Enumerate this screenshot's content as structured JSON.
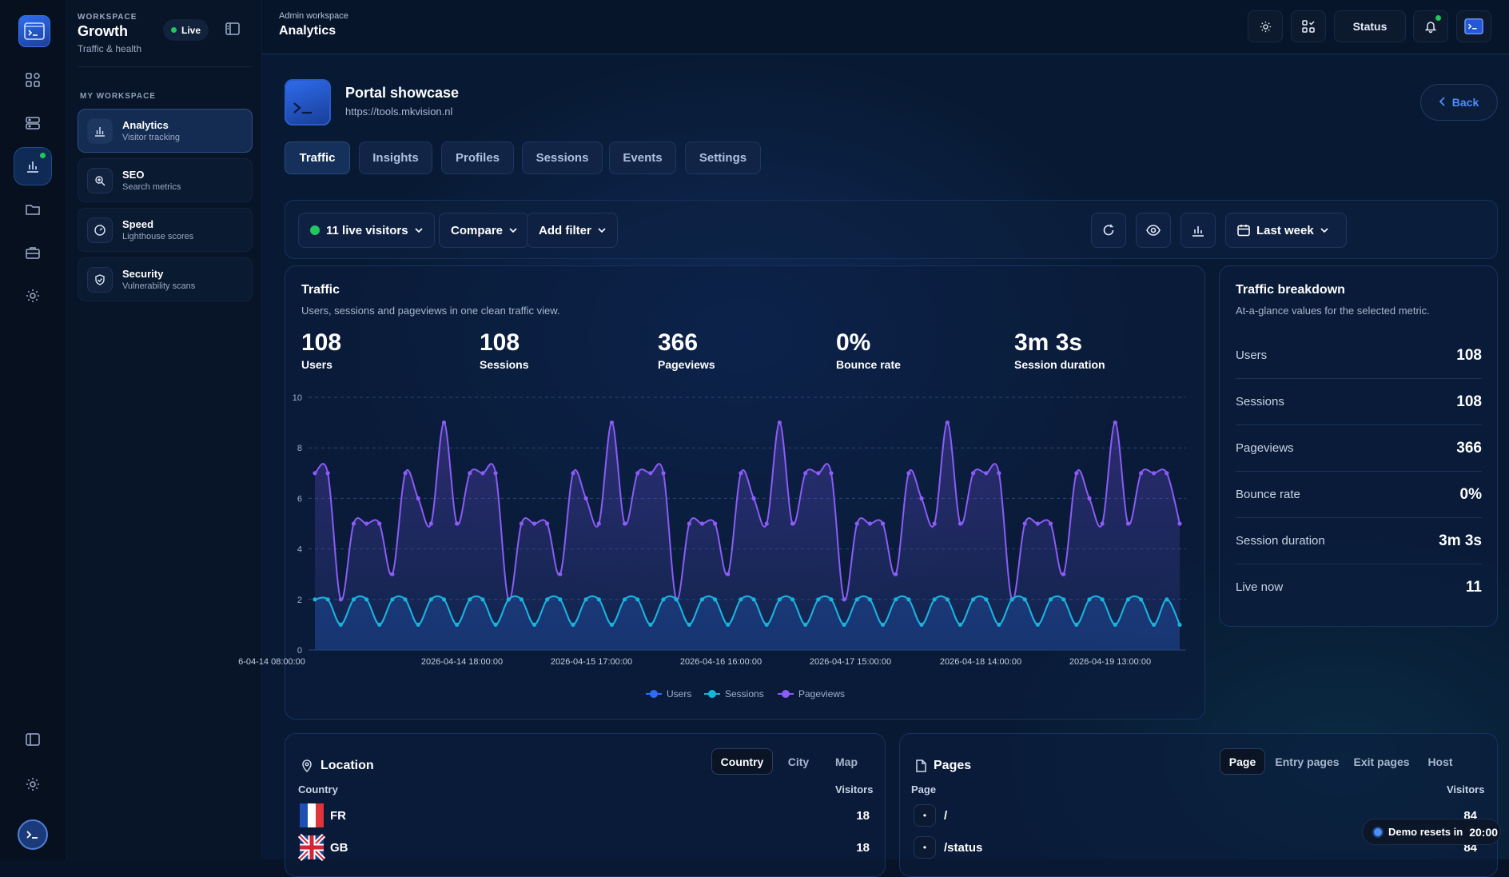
{
  "workspace": {
    "kicker": "WORKSPACE",
    "title": "Growth",
    "subtitle": "Traffic & health",
    "live_label": "Live",
    "section_label": "MY WORKSPACE",
    "items": [
      {
        "label": "Analytics",
        "desc": "Visitor tracking",
        "icon": "bar-chart-icon",
        "active": true
      },
      {
        "label": "SEO",
        "desc": "Search metrics",
        "icon": "magnifier-icon"
      },
      {
        "label": "Speed",
        "desc": "Lighthouse scores",
        "icon": "gauge-icon"
      },
      {
        "label": "Security",
        "desc": "Vulnerability scans",
        "icon": "shield-icon"
      }
    ]
  },
  "topbar": {
    "kicker": "Admin workspace",
    "title": "Analytics",
    "status_label": "Status"
  },
  "portal": {
    "title": "Portal showcase",
    "url": "https://tools.mkvision.nl",
    "back_label": "Back"
  },
  "tabs": [
    "Traffic",
    "Insights",
    "Profiles",
    "Sessions",
    "Events",
    "Settings"
  ],
  "filters": {
    "live_visitors": "11 live visitors",
    "compare": "Compare",
    "add_filter": "Add filter",
    "range": "Last week"
  },
  "traffic": {
    "title": "Traffic",
    "subtitle": "Users, sessions and pageviews in one clean traffic view.",
    "kpis": [
      {
        "value": "108",
        "label": "Users"
      },
      {
        "value": "108",
        "label": "Sessions"
      },
      {
        "value": "366",
        "label": "Pageviews"
      },
      {
        "value": "0%",
        "label": "Bounce rate"
      },
      {
        "value": "3m 3s",
        "label": "Session duration"
      }
    ]
  },
  "breakdown": {
    "title": "Traffic breakdown",
    "subtitle": "At-a-glance values for the selected metric.",
    "rows": [
      {
        "label": "Users",
        "value": "108"
      },
      {
        "label": "Sessions",
        "value": "108"
      },
      {
        "label": "Pageviews",
        "value": "366"
      },
      {
        "label": "Bounce rate",
        "value": "0%"
      },
      {
        "label": "Session duration",
        "value": "3m 3s"
      },
      {
        "label": "Live now",
        "value": "11"
      }
    ]
  },
  "location": {
    "title": "Location",
    "segments": [
      "Country",
      "City",
      "Map"
    ],
    "col_left": "Country",
    "col_right": "Visitors",
    "rows": [
      {
        "code": "FR",
        "value": "18"
      },
      {
        "code": "GB",
        "value": "18"
      }
    ]
  },
  "pages": {
    "title": "Pages",
    "segments": [
      "Page",
      "Entry pages",
      "Exit pages",
      "Host"
    ],
    "col_left": "Page",
    "col_right": "Visitors",
    "rows": [
      {
        "path": "/",
        "value": "84"
      },
      {
        "path": "/status",
        "value": "84"
      }
    ]
  },
  "demo": {
    "label": "Demo resets in",
    "time": "20:00"
  },
  "colors": {
    "users": "#2d6cf6",
    "sessions": "#19b4d8",
    "pageviews": "#8b5cf6",
    "accent": "#4c8dff",
    "live": "#22c55e"
  },
  "chart_data": {
    "type": "line",
    "ylim": [
      0,
      10
    ],
    "yticks": [
      0,
      2,
      4,
      6,
      8,
      10
    ],
    "x_tick_labels": [
      "6-04-14 08:00:00",
      "2026-04-14 18:00:00",
      "2026-04-15 17:00:00",
      "2026-04-16 16:00:00",
      "2026-04-17 15:00:00",
      "2026-04-18 14:00:00",
      "2026-04-19 13:00:00"
    ],
    "grid": true,
    "legend_position": "bottom-center",
    "series": [
      {
        "name": "Users",
        "values": [
          2,
          2,
          1,
          2,
          2,
          1,
          2,
          2,
          1,
          2,
          2,
          1,
          2,
          2,
          1,
          2,
          2,
          1,
          2,
          2,
          1,
          2,
          2,
          1,
          2,
          2,
          1,
          2,
          2,
          1,
          2,
          2,
          1,
          2,
          2,
          1,
          2,
          2,
          1,
          2,
          2,
          1,
          2,
          2,
          1,
          2,
          2,
          1,
          2,
          2,
          1,
          2,
          2,
          1,
          2,
          2,
          1,
          2,
          2,
          1,
          2,
          2,
          1,
          2,
          2,
          1,
          2,
          1
        ]
      },
      {
        "name": "Sessions",
        "values": [
          2,
          2,
          1,
          2,
          2,
          1,
          2,
          2,
          1,
          2,
          2,
          1,
          2,
          2,
          1,
          2,
          2,
          1,
          2,
          2,
          1,
          2,
          2,
          1,
          2,
          2,
          1,
          2,
          2,
          1,
          2,
          2,
          1,
          2,
          2,
          1,
          2,
          2,
          1,
          2,
          2,
          1,
          2,
          2,
          1,
          2,
          2,
          1,
          2,
          2,
          1,
          2,
          2,
          1,
          2,
          2,
          1,
          2,
          2,
          1,
          2,
          2,
          1,
          2,
          2,
          1,
          2,
          1
        ]
      },
      {
        "name": "Pageviews",
        "values": [
          7,
          7,
          2,
          5,
          5,
          5,
          3,
          7,
          6,
          5,
          9,
          5,
          7,
          7,
          7,
          2,
          5,
          5,
          5,
          3,
          7,
          6,
          5,
          9,
          5,
          7,
          7,
          7,
          2,
          5,
          5,
          5,
          3,
          7,
          6,
          5,
          9,
          5,
          7,
          7,
          7,
          2,
          5,
          5,
          5,
          3,
          7,
          6,
          5,
          9,
          5,
          7,
          7,
          7,
          2,
          5,
          5,
          5,
          3,
          7,
          6,
          5,
          9,
          5,
          7,
          7,
          7,
          5
        ]
      }
    ]
  }
}
